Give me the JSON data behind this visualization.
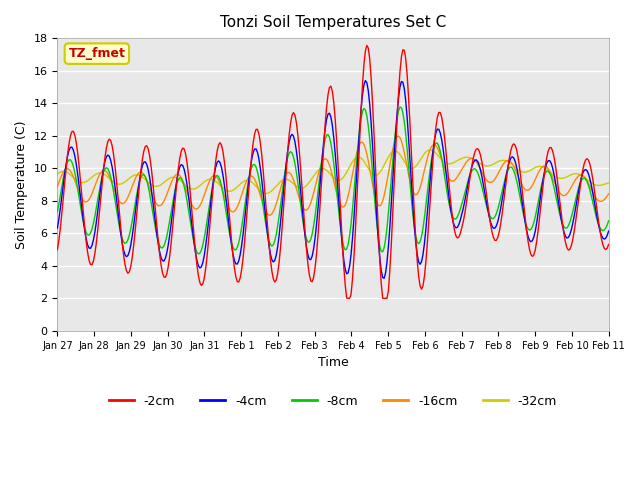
{
  "title": "Tonzi Soil Temperatures Set C",
  "xlabel": "Time",
  "ylabel": "Soil Temperature (C)",
  "ylim": [
    0,
    18
  ],
  "annotation_text": "TZ_fmet",
  "annotation_bg": "#ffffcc",
  "annotation_border": "#cccc00",
  "annotation_fg": "#cc0000",
  "bg_color": "#e8e8e8",
  "legend_entries": [
    "-2cm",
    "-4cm",
    "-8cm",
    "-16cm",
    "-32cm"
  ],
  "line_colors": [
    "#ff0000",
    "#0000ff",
    "#00cc00",
    "#ff8800",
    "#cccc00"
  ],
  "x_tick_labels": [
    "Jan 27",
    "Jan 28",
    "Jan 29",
    "Jan 30",
    "Jan 31",
    "Feb 1",
    "Feb 2",
    "Feb 3",
    "Feb 4",
    "Feb 5",
    "Feb 6",
    "Feb 7",
    "Feb 8",
    "Feb 9",
    "Feb 10",
    "Feb 11"
  ],
  "n_points": 384
}
